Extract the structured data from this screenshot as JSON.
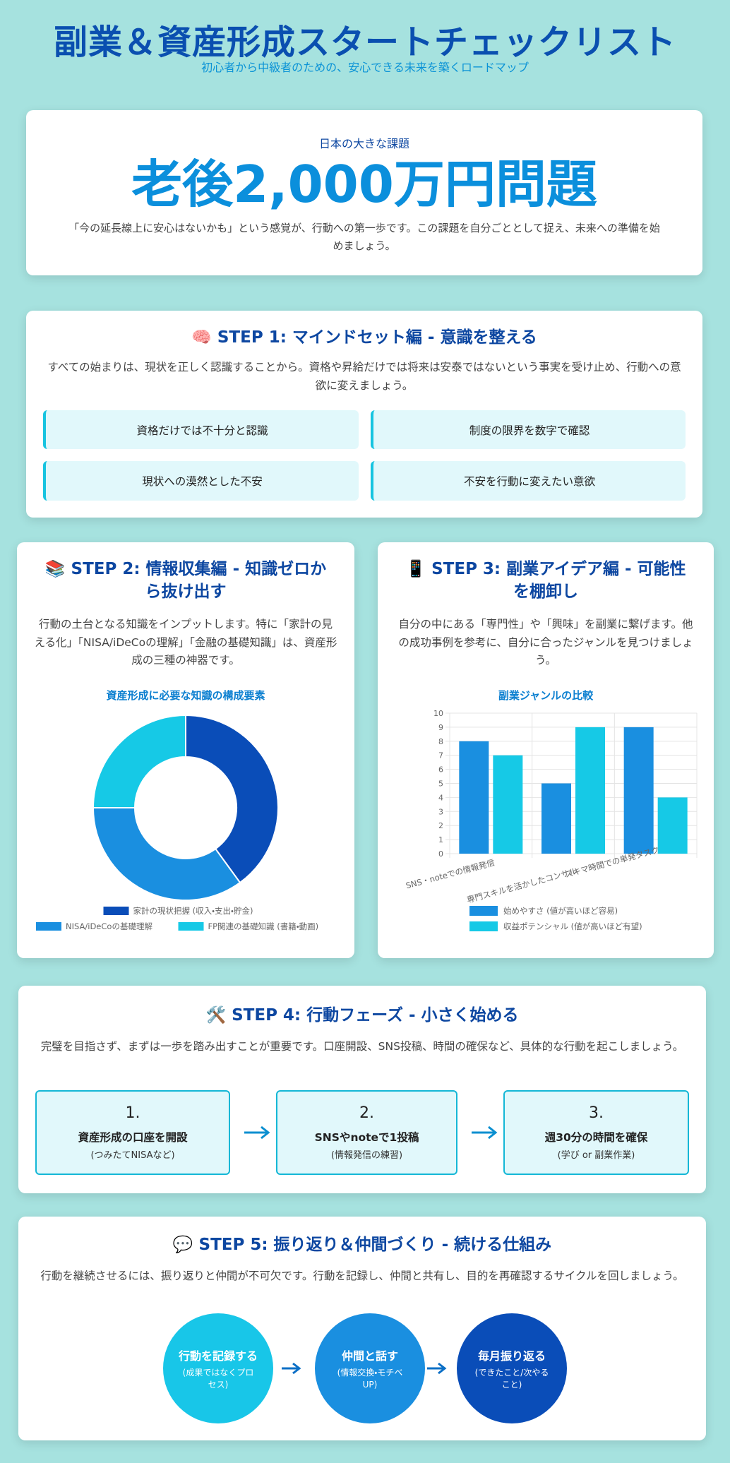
{
  "header": {
    "title": "副業＆資産形成スタートチェックリスト",
    "subtitle": "初心者から中級者のための、安心できる未来を築くロードマップ"
  },
  "hero": {
    "kicker": "日本の大きな課題",
    "headline": "老後2,000万円問題",
    "text": "「今の延長線上に安心はないかも」という感覚が、行動への第一歩です。この課題を自分ごととして捉え、未来への準備を始めましょう。"
  },
  "step1": {
    "title": "🧠 STEP 1: マインドセット編 - 意識を整える",
    "text": "すべての始まりは、現状を正しく認識することから。資格や昇給だけでは将来は安泰ではないという事実を受け止め、行動への意欲に変えましょう。",
    "items": [
      "資格だけでは不十分と認識",
      "制度の限界を数字で確認",
      "現状への漠然とした不安",
      "不安を行動に変えたい意欲"
    ]
  },
  "step2": {
    "title": "📚 STEP 2: 情報収集編 - 知識ゼロから抜け出す",
    "text": "行動の土台となる知識をインプットします。特に「家計の見える化」「NISA/iDeCoの理解」「金融の基礎知識」は、資産形成の三種の神器です。"
  },
  "step3": {
    "title": "📱 STEP 3: 副業アイデア編 - 可能性を棚卸し",
    "text": "自分の中にある「専門性」や「興味」を副業に繋げます。他の成功事例を参考に、自分に合ったジャンルを見つけましょう。"
  },
  "chart_data": [
    {
      "type": "doughnut",
      "title": "資産形成に必要な知識の構成要素",
      "categories": [
        "家計の現状把握 (収入・支出・貯金)",
        "NISA/iDeCoの基礎理解",
        "FP関連の基礎知識 (書籍・動画)"
      ],
      "values": [
        40,
        35,
        25
      ],
      "colors": [
        "#0a4db8",
        "#1a8fe0",
        "#16c9e6"
      ],
      "legend": "bottom"
    },
    {
      "type": "bar",
      "title": "副業ジャンルの比較",
      "categories": [
        "SNS・noteでの情報発信",
        "専門スキルを活かしたコンサル",
        "スキマ時間での単発タスク"
      ],
      "series": [
        {
          "name": "始めやすさ (値が高いほど容易)",
          "color": "#1a8fe0",
          "values": [
            8,
            5,
            9
          ]
        },
        {
          "name": "収益ポテンシャル (値が高いほど有望)",
          "color": "#16c9e6",
          "values": [
            7,
            9,
            4
          ]
        }
      ],
      "ylim": [
        0,
        10
      ],
      "yticks": [
        0,
        1,
        2,
        3,
        4,
        5,
        6,
        7,
        8,
        9,
        10
      ],
      "grid": true,
      "legend": "bottom"
    }
  ],
  "step4": {
    "title": "🛠️ STEP 4: 行動フェーズ - 小さく始める",
    "text": "完璧を目指さず、まずは一歩を踏み出すことが重要です。口座開設、SNS投稿、時間の確保など、具体的な行動を起こしましょう。",
    "actions": [
      {
        "number": "1.",
        "title": "資産形成の口座を開設",
        "note": "(つみたてNISAなど)"
      },
      {
        "number": "2.",
        "title": "SNSやnoteで1投稿",
        "note": "(情報発信の練習)"
      },
      {
        "number": "3.",
        "title": "週30分の時間を確保",
        "note": "(学び or 副業作業)"
      }
    ]
  },
  "step5": {
    "title": "💬 STEP 5: 振り返り＆仲間づくり - 続ける仕組み",
    "text": "行動を継続させるには、振り返りと仲間が不可欠です。行動を記録し、仲間と共有し、目的を再確認するサイクルを回しましょう。",
    "cycle": [
      {
        "title": "行動を記録する",
        "note": "(成果ではなくプロセス)"
      },
      {
        "title": "仲間と話す",
        "note": "(情報交換・モチベUP)"
      },
      {
        "title": "毎月振り返る",
        "note": "(できたこと/次やること)"
      }
    ]
  }
}
